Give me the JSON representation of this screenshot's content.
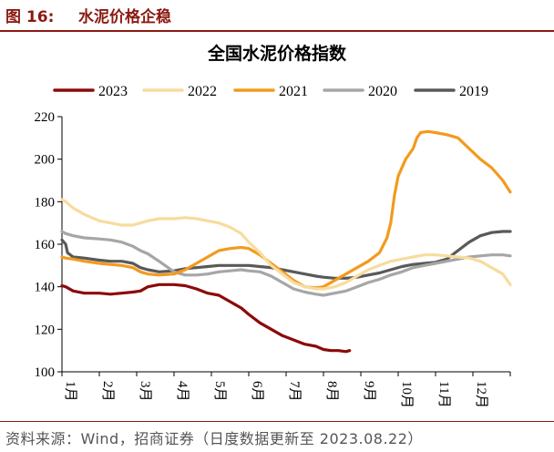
{
  "figure": {
    "number": "图 16:",
    "caption": "水泥价格企稳",
    "source": "资料来源：Wind，招商证券（日度数据更新至 2023.08.22）"
  },
  "chart_data": {
    "type": "line",
    "title": "全国水泥价格指数",
    "xlabel": "",
    "ylabel": "",
    "ylim": [
      100,
      220
    ],
    "yticks": [
      100,
      120,
      140,
      160,
      180,
      200,
      220
    ],
    "x_tick_labels": [
      "1月",
      "2月",
      "3月",
      "4月",
      "5月",
      "6月",
      "7月",
      "8月",
      "9月",
      "10月",
      "11月",
      "12月"
    ],
    "grid": false,
    "legend_position": "top",
    "series": [
      {
        "name": "2023",
        "color": "#8b0a0a",
        "x": [
          1.0,
          1.1,
          1.3,
          1.6,
          2.0,
          2.3,
          2.6,
          2.9,
          3.1,
          3.3,
          3.6,
          4.0,
          4.3,
          4.6,
          4.9,
          5.2,
          5.5,
          5.8,
          6.0,
          6.3,
          6.6,
          6.9,
          7.2,
          7.5,
          7.8,
          8.0,
          8.2,
          8.4,
          8.6,
          8.7
        ],
        "values": [
          140.5,
          140,
          138,
          137,
          137,
          136.5,
          137,
          137.5,
          138,
          140,
          141,
          141,
          140.5,
          139,
          137,
          136,
          133,
          130,
          127,
          123,
          120,
          117,
          115,
          113,
          112,
          110.5,
          110,
          110,
          109.5,
          110
        ]
      },
      {
        "name": "2022",
        "color": "#f7dc9e",
        "x": [
          1.0,
          1.1,
          1.3,
          1.6,
          2.0,
          2.3,
          2.6,
          2.9,
          3.1,
          3.3,
          3.6,
          4.0,
          4.3,
          4.6,
          4.9,
          5.2,
          5.5,
          5.8,
          6.0,
          6.3,
          6.6,
          6.9,
          7.2,
          7.5,
          7.8,
          8.0,
          8.3,
          8.6,
          8.9,
          9.2,
          9.5,
          9.8,
          10.1,
          10.4,
          10.7,
          11.0,
          11.3,
          11.6,
          11.9,
          12.2,
          12.5,
          12.8,
          13.0
        ],
        "values": [
          181,
          180,
          177,
          174,
          171,
          170,
          169,
          169,
          170,
          171,
          172,
          172,
          172.5,
          172,
          171,
          170,
          168,
          165,
          161,
          156,
          150,
          146,
          142,
          140,
          139,
          139,
          140,
          142,
          145,
          148,
          150,
          152,
          153,
          154,
          155,
          155,
          154.5,
          154,
          153.5,
          152,
          149,
          146,
          141
        ]
      },
      {
        "name": "2021",
        "color": "#f39a1e",
        "x": [
          1.0,
          1.1,
          1.3,
          1.6,
          2.0,
          2.3,
          2.6,
          2.9,
          3.1,
          3.3,
          3.6,
          4.0,
          4.3,
          4.6,
          4.9,
          5.2,
          5.5,
          5.8,
          6.0,
          6.3,
          6.6,
          6.9,
          7.2,
          7.5,
          7.8,
          8.0,
          8.3,
          8.6,
          8.9,
          9.2,
          9.5,
          9.7,
          9.8,
          9.9,
          10.0,
          10.2,
          10.4,
          10.5,
          10.6,
          10.8,
          11.0,
          11.3,
          11.6,
          11.9,
          12.2,
          12.5,
          12.8,
          13.0
        ],
        "values": [
          154,
          153.5,
          153,
          152,
          151,
          150.5,
          150,
          149,
          147,
          146,
          145.5,
          146,
          148,
          151,
          154,
          157,
          158,
          158.5,
          158,
          155,
          151,
          147,
          143,
          140,
          139.5,
          140,
          143,
          146,
          149,
          152,
          156,
          163,
          170,
          183,
          192,
          200,
          205,
          210,
          212.5,
          213,
          212.5,
          211.5,
          210,
          205,
          200,
          196,
          190,
          184.5
        ]
      },
      {
        "name": "2020",
        "color": "#a6a6a6",
        "x": [
          1.0,
          1.1,
          1.3,
          1.6,
          2.0,
          2.3,
          2.6,
          2.9,
          3.1,
          3.3,
          3.6,
          4.0,
          4.3,
          4.6,
          4.9,
          5.2,
          5.5,
          5.8,
          6.0,
          6.3,
          6.6,
          6.9,
          7.2,
          7.5,
          7.8,
          8.0,
          8.3,
          8.6,
          8.9,
          9.2,
          9.5,
          9.8,
          10.1,
          10.4,
          10.7,
          11.0,
          11.3,
          11.6,
          11.9,
          12.2,
          12.5,
          12.8,
          13.0
        ],
        "values": [
          166,
          165,
          164,
          163,
          162.5,
          162,
          161,
          159,
          157,
          155.5,
          152,
          147,
          145.5,
          145.5,
          146,
          147,
          147.5,
          148,
          147.5,
          147,
          145,
          142,
          139,
          137.5,
          136.5,
          136,
          137,
          138,
          140,
          142,
          143.5,
          145.5,
          147,
          149,
          150,
          151,
          152,
          153,
          154,
          154.5,
          155,
          155,
          154.5
        ]
      },
      {
        "name": "2019",
        "color": "#595959",
        "x": [
          1.0,
          1.1,
          1.15,
          1.3,
          1.6,
          2.0,
          2.3,
          2.6,
          2.9,
          3.1,
          3.3,
          3.6,
          4.0,
          4.3,
          4.6,
          4.9,
          5.2,
          5.5,
          5.8,
          6.0,
          6.3,
          6.6,
          6.9,
          7.2,
          7.5,
          7.8,
          8.0,
          8.3,
          8.6,
          8.9,
          9.2,
          9.5,
          9.8,
          10.1,
          10.4,
          10.7,
          11.0,
          11.3,
          11.6,
          11.9,
          12.2,
          12.5,
          12.8,
          13.0
        ],
        "values": [
          162,
          160,
          156,
          154,
          153.5,
          152.5,
          152,
          152,
          151,
          149,
          148,
          147,
          147.5,
          148.5,
          149,
          149.5,
          150,
          150,
          150,
          150,
          149.5,
          149,
          148,
          147,
          146,
          145,
          144.5,
          144,
          144,
          144.5,
          145.5,
          146.5,
          148,
          149.5,
          150.5,
          151,
          151.5,
          153,
          157,
          161,
          164,
          165.5,
          166,
          166
        ]
      }
    ]
  }
}
